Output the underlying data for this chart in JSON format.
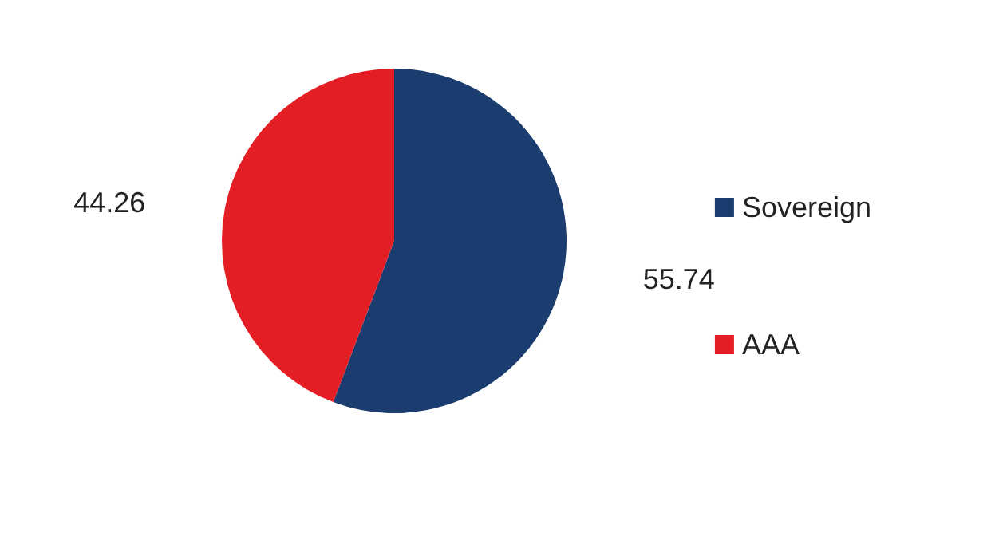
{
  "chart_data": {
    "type": "pie",
    "categories": [
      "Sovereign",
      "AAA"
    ],
    "values": [
      55.74,
      44.26
    ],
    "colors": [
      "#1a3c6e",
      "#e31e24"
    ],
    "data_labels": true,
    "legend": "right"
  }
}
